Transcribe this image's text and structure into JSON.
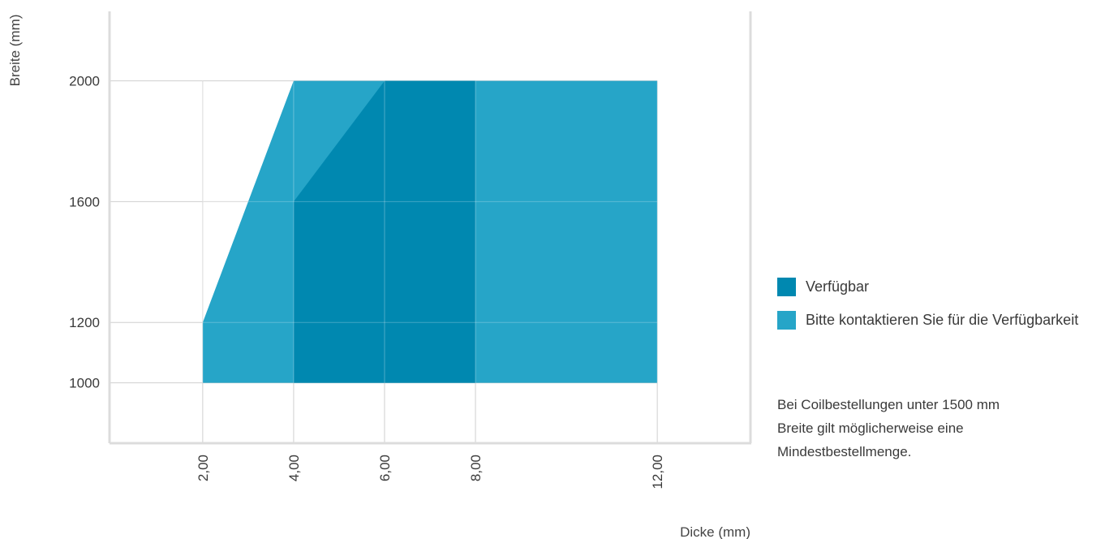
{
  "chart_data": {
    "type": "area",
    "xlabel": "Dicke (mm)",
    "ylabel": "Breite (mm)",
    "x_ticks": [
      2,
      4,
      6,
      8,
      12
    ],
    "x_tick_labels": [
      "2,00",
      "4,00",
      "6,00",
      "8,00",
      "12,00"
    ],
    "y_ticks": [
      1000,
      1200,
      1600,
      2000
    ],
    "y_tick_labels": [
      "1000",
      "1200",
      "1600",
      "2000"
    ],
    "xlim": [
      -0.05,
      14.05
    ],
    "ylim": [
      800,
      2230
    ],
    "grid": true,
    "legend_position": "right",
    "series": [
      {
        "name": "Bitte kontaktieren Sie für die Verfügbarkeit",
        "color": "#26a5c8",
        "polygon": [
          [
            2,
            1000
          ],
          [
            2,
            1200
          ],
          [
            4,
            2000
          ],
          [
            12,
            2000
          ],
          [
            12,
            1000
          ]
        ]
      },
      {
        "name": "Verfügbar",
        "color": "#0088b0",
        "polygon": [
          [
            4,
            1000
          ],
          [
            4,
            1600
          ],
          [
            6,
            2000
          ],
          [
            8,
            2000
          ],
          [
            8,
            1000
          ]
        ]
      }
    ]
  },
  "legend": {
    "items": [
      {
        "label": "Verfügbar",
        "color": "#0088b0"
      },
      {
        "label": "Bitte kontaktieren Sie für die Verfügbarkeit",
        "color": "#26a5c8"
      }
    ]
  },
  "note": {
    "lines": [
      "Bei Coilbestellungen unter 1500 mm",
      "Breite gilt möglicherweise eine",
      "Mindestbestellmenge."
    ]
  }
}
